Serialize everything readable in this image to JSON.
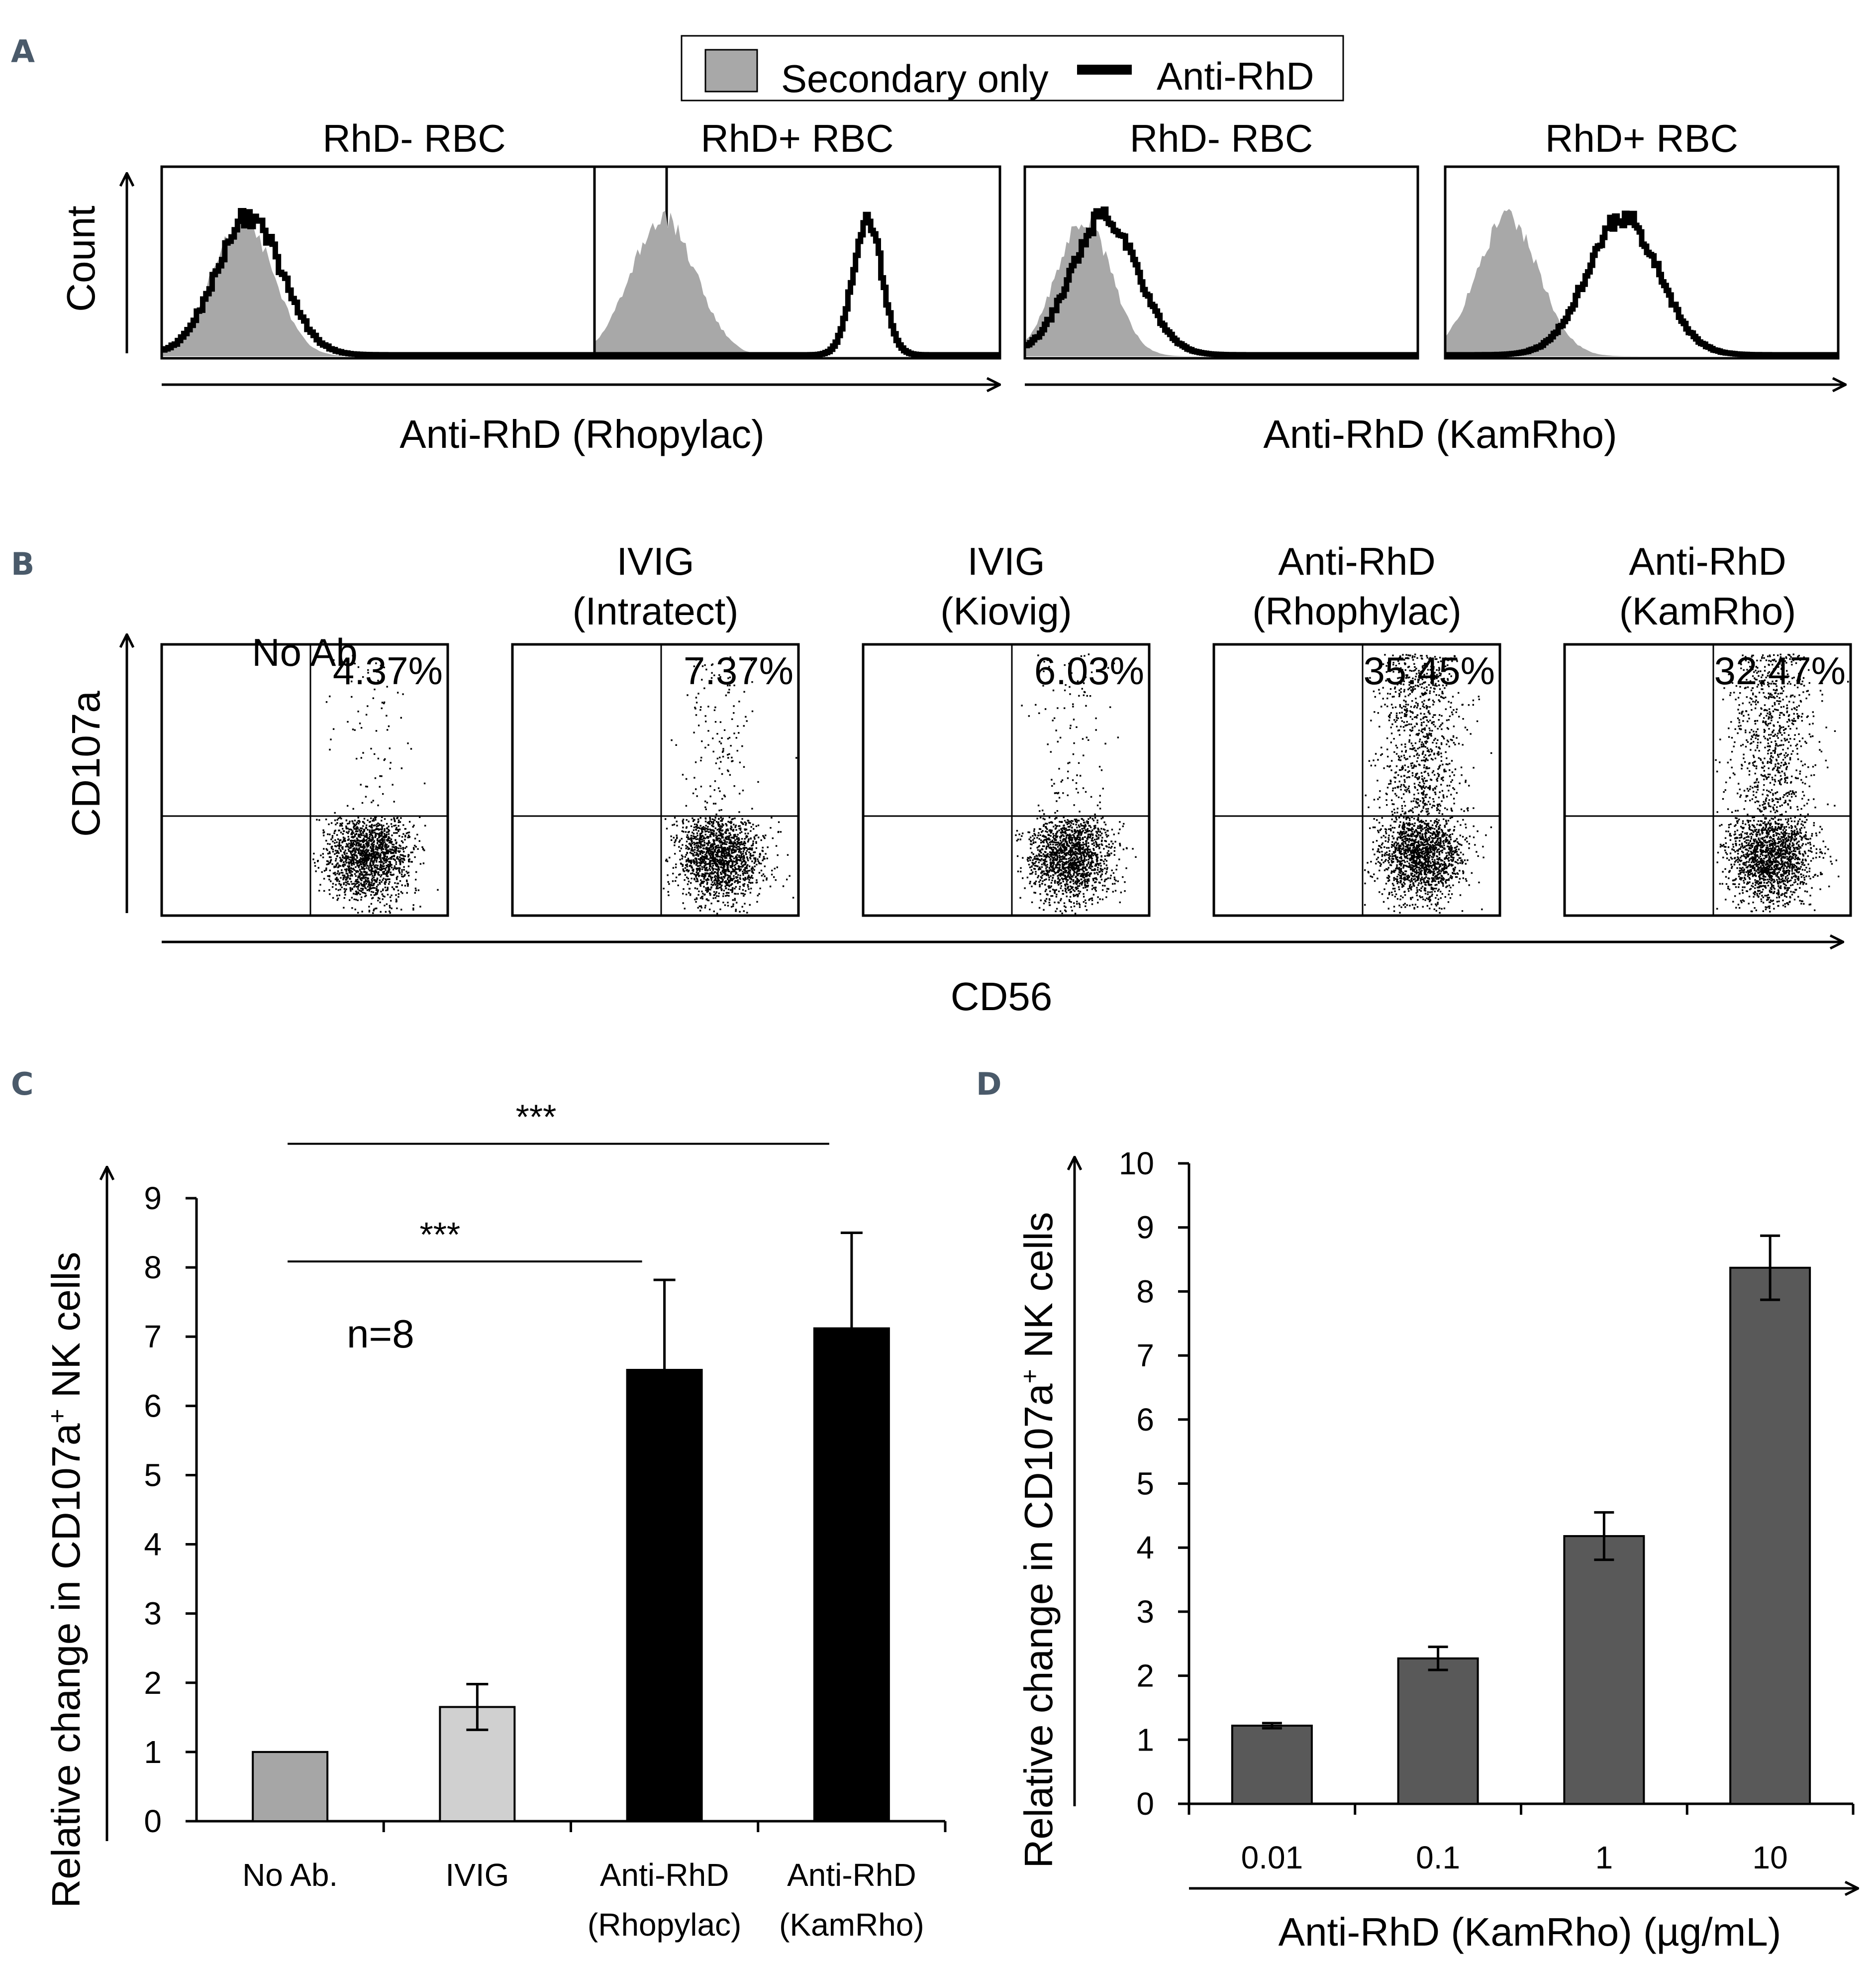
{
  "panels": {
    "A": "A",
    "B": "B",
    "C": "C",
    "D": "D"
  },
  "colors": {
    "secondary_fill": "#a8a8a8",
    "anti_rhd_line": "#000000",
    "c_no_ab": "#a6a6a6",
    "c_ivig": "#d0d0d0",
    "c_anti_rhd": "#000000",
    "d_bar": "#595959"
  },
  "chart_data": [
    {
      "panel": "A",
      "type": "histogram",
      "legend": [
        "Secondary only",
        "Anti-RhD"
      ],
      "ylabel": "Count",
      "groups": [
        {
          "xlabel": "Anti-RhD (Rhopylac)",
          "subplots": [
            {
              "title": "RhD- RBC",
              "secondary_peak": 0.16,
              "secondary_width": 0.06,
              "antirhd_peak": 0.17,
              "antirhd_width": 0.065
            },
            {
              "title": "RhD+ RBC",
              "secondary_peak": 0.17,
              "secondary_width": 0.08,
              "antirhd_peak": 0.67,
              "antirhd_width": 0.035
            }
          ]
        },
        {
          "xlabel": "Anti-RhD (KamRho)",
          "subplots": [
            {
              "title": "RhD- RBC",
              "secondary_peak": 0.15,
              "secondary_width": 0.07,
              "antirhd_peak": 0.2,
              "antirhd_width": 0.085
            },
            {
              "title": "RhD+ RBC",
              "secondary_peak": 0.16,
              "secondary_width": 0.08,
              "antirhd_peak": 0.45,
              "antirhd_width": 0.09
            }
          ]
        }
      ]
    },
    {
      "panel": "B",
      "type": "scatter",
      "xlabel": "CD56",
      "ylabel": "CD107a",
      "plots": [
        {
          "title_lines": [
            "",
            "No Ab"
          ],
          "percent": "4.37%",
          "upper_fraction": 0.0437
        },
        {
          "title_lines": [
            "IVIG",
            "(Intratect)"
          ],
          "percent": "7.37%",
          "upper_fraction": 0.0737
        },
        {
          "title_lines": [
            "IVIG",
            "(Kiovig)"
          ],
          "percent": "6.03%",
          "upper_fraction": 0.0603
        },
        {
          "title_lines": [
            "Anti-RhD",
            "(Rhophylac)"
          ],
          "percent": "35.45%",
          "upper_fraction": 0.3545
        },
        {
          "title_lines": [
            "Anti-RhD",
            "(KamRho)"
          ],
          "percent": "32.47%",
          "upper_fraction": 0.3247
        }
      ]
    },
    {
      "panel": "C",
      "type": "bar",
      "ylabel": "Relative change in CD107a",
      "ylabel_sup": "+",
      "ylabel_end": " NK cells",
      "ylim": [
        0,
        9
      ],
      "yticks": [
        "0",
        "1",
        "2",
        "3",
        "4",
        "5",
        "6",
        "7",
        "8",
        "9"
      ],
      "categories": [
        {
          "line1": "No Ab.",
          "line2": ""
        },
        {
          "line1": "IVIG",
          "line2": ""
        },
        {
          "line1": "Anti-RhD",
          "line2": "(Rhopylac)"
        },
        {
          "line1": "Anti-RhD",
          "line2": "(KamRho)"
        }
      ],
      "values": [
        1.0,
        1.65,
        6.52,
        7.12
      ],
      "errors": [
        0.0,
        0.33,
        1.3,
        1.38
      ],
      "annotation": "n=8",
      "significance": [
        {
          "from": 0,
          "to": 2,
          "label": "***",
          "y": 8.0
        },
        {
          "from": 0,
          "to": 3,
          "label": "***",
          "y": 9.7
        }
      ]
    },
    {
      "panel": "D",
      "type": "bar",
      "ylabel": "Relative change in CD107a",
      "ylabel_sup": "+",
      "ylabel_end": " NK cells",
      "xlabel": "Anti-RhD (KamRho) (µg/mL)",
      "ylim": [
        0,
        10
      ],
      "yticks": [
        "0",
        "1",
        "2",
        "3",
        "4",
        "5",
        "6",
        "7",
        "8",
        "9",
        "10"
      ],
      "categories": [
        "0.01",
        "0.1",
        "1",
        "10"
      ],
      "values": [
        1.22,
        2.27,
        4.18,
        8.37
      ],
      "errors": [
        0.04,
        0.18,
        0.37,
        0.5
      ]
    }
  ]
}
